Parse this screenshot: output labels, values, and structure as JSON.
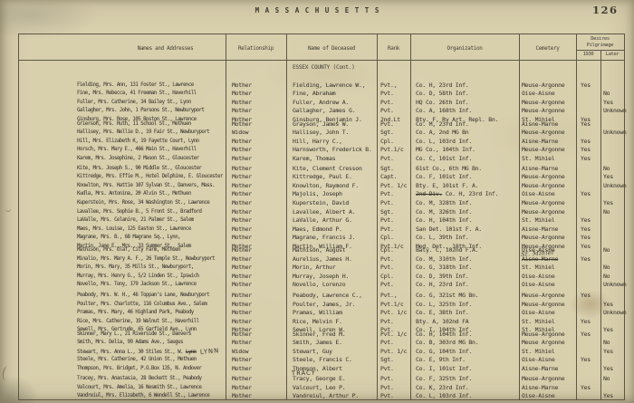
{
  "page": {
    "state_title": "MASSACHUSETTS",
    "page_number": "126",
    "section": "ESSEX COUNTY (Cont.)"
  },
  "colors": {
    "paper": "#d8cfad",
    "ink": "#474139",
    "line": "#5e5746",
    "pencil": "#35312a"
  },
  "table": {
    "headers": {
      "names": "Names and Addresses",
      "relationship": "Relationship",
      "deceased": "Name of Deceased",
      "rank": "Rank",
      "organization": "Organization",
      "cemetery": "Cemetery",
      "pilgrimage_line1": "Desires",
      "pilgrimage_line2": "Pilgrimage",
      "col_1930": "1930",
      "col_later": "Later"
    },
    "groups": [
      {
        "rows": [
          {
            "name": "Fielding, Mrs. Ann, 131 Foster St., Lawrence",
            "rel": "Mother",
            "dec": "Fielding, Lawrence W.,",
            "rank": "Pvt.,",
            "org": "Co. H, 23rd Inf.",
            "cem": "Meuse-Argonne",
            "y1930": "Yes",
            "later": ""
          },
          {
            "name": "Fine, Mrs. Rebecca, 41 Freeman St., Haverhill",
            "rel": "Mother",
            "dec": "Fine, Abraham",
            "rank": "Pvt.",
            "org": "Co. D, 58th Inf.",
            "cem": "Oise-Aisne",
            "y1930": "",
            "later": "No"
          },
          {
            "name": "Fuller, Mrs. Catherine, 34 Bailey St., Lynn",
            "rel": "Mother",
            "dec": "Fuller, Andrew A.",
            "rank": "Pvt.",
            "org": "HQ Co. 26th Inf.",
            "cem": "Meuse-Argonne",
            "y1930": "",
            "later": "Yes"
          },
          {
            "name": "Gallagher, Mrs. John, 1 Parsons St., Newburyport",
            "rel": "Mother",
            "dec": "Gallagher, James G.",
            "rank": "Pvt.",
            "org": "Co. A, 168th Inf.",
            "cem": "Meuse-Argonne",
            "y1930": "",
            "later": "Unknown"
          },
          {
            "name": "Ginsburg, Mrs. Rose, 105 Boston St., Lawrence",
            "rel": "Mother",
            "dec": "Ginsburg, Benjamin J.",
            "rank": "2nd.Lt",
            "org": "Bty. F, Ry Art. Repl. Bn.",
            "cem": "St. Mihiel",
            "y1930": "Yes",
            "later": ""
          }
        ]
      },
      {
        "rows": [
          {
            "name": "Grierson, Mrs. Ruth, 11 School St., Methuen",
            "rel": "Mother",
            "dec": "Grayson, James W.",
            "rank": "Pvt.",
            "org": "Co. M, 23rd Inf.",
            "cem": "Aisne-Marne",
            "y1930": "Yes",
            "later": ""
          },
          {
            "name": "Hallisey, Mrs. Nellie D., 19 Fair St., Newburyport",
            "rel": "Widow",
            "dec": "Hallisey, John T.",
            "rank": "Sgt.",
            "org": "Co. A, 2nd MG Bn",
            "cem": "Meuse-Argonne",
            "y1930": "",
            "later": "Unknown"
          },
          {
            "name": "Hill, Mrs. Elizabeth K, 19 Fayette Court, Lynn",
            "rel": "Mother",
            "dec": "Hill, Harry C.,",
            "rank": "Cpl.",
            "org": "Co. L, 103rd Inf.",
            "cem": "Aisne-Marne",
            "y1930": "Yes",
            "later": ""
          },
          {
            "name": "Horsch, Mrs. Mary E., 466 Main St., Haverhill",
            "rel": "Mother",
            "dec": "Harnsworth, Frederick B.",
            "rank": "Pvt.1/c",
            "org": "MG Co., 104th Inf.",
            "cem": "Meuse-Argonne",
            "y1930": "Yes",
            "later": ""
          },
          {
            "name": "Karem, Mrs. Josephine, 2 Mason St., Gloucester",
            "rel": "Mother",
            "dec": "Karem, Thomas",
            "rank": "Pvt.",
            "org": "Co. C, 101st Inf.",
            "cem": "St. Mihiel",
            "y1930": "Yes",
            "later": ""
          }
        ]
      },
      {
        "rows": [
          {
            "name": "Kite, Mrs. Joseph S., 90 Middle St., Gloucester",
            "rel": "Mother",
            "dec": "Kite, Clement Cresson",
            "rank": "Sgt.",
            "org": "61st Co., 6th MG Bn.",
            "cem": "Aisne-Marne",
            "y1930": "",
            "later": "No"
          },
          {
            "name": "Kittredge, Mrs. Effie M., Hotel Delphine, E. Gloucester",
            "rel": "Mother",
            "dec": "Kittredge, Paul E.",
            "rank": "Capt.",
            "org": "Co. F, 101st Inf.",
            "cem": "Meuse-Argonne",
            "y1930": "",
            "later": "Yes"
          },
          {
            "name": "Knowlton, Mrs. Hattie 107 Sylvan St., Danvers, Mass.",
            "rel": "Mother",
            "dec": "Knowlton, Raymond F.",
            "rank": "Pvt. 1/c",
            "org": "Bty. E, 101st F. A.",
            "cem": "Meuse-Argonne",
            "y1930": "",
            "later": "Unknown"
          },
          {
            "name": "Kudla, Mrs. Antonina, 20 Alvin St., Methuen",
            "rel": "Mother",
            "dec": "Majolis, Joseph",
            "rank": "Pvt.",
            "org_struck": "2nd Div.",
            "org": "Co. H, 23rd Inf.",
            "cem": "Oise-Aisne",
            "y1930": "Yes",
            "later": ""
          },
          {
            "name": "Kuperstein, Mrs. Rose, 34 Washington St., Lawrence",
            "rel": "Mother",
            "dec": "Kuperstein, David",
            "rank": "Pvt.",
            "org": "Co. M, 328th Inf.",
            "cem": "Meuse-Argonne",
            "y1930": "",
            "later": "Yes"
          }
        ]
      },
      {
        "rows": [
          {
            "name": "Lavallee, Mrs. Sophie B., 5 Front St., Bradford",
            "rel": "Mother",
            "dec": "Lavallee, Albert A.",
            "rank": "Sgt.",
            "org": "Co. M, 326th Inf.",
            "cem": "Meuse-Argonne",
            "y1930": "",
            "later": "No"
          },
          {
            "name": "LaValle, Mrs. Celanire, 21 Palmer St., Salem",
            "rel": "Mother",
            "dec": "LaValle, Arthur G.",
            "rank": "Pvt.",
            "org": "Co. H, 104th Inf.",
            "cem": "St. Mihiel",
            "y1930": "Yes",
            "later": ""
          },
          {
            "name": "Maes, Mrs. Louise, 125 Easton St., Lawrence",
            "rel": "Mother",
            "dec": "Maes, Edmond P.",
            "rank": "Pvt.",
            "org": "San Det. 101st F. A.",
            "cem": "Aisne-Marne",
            "y1930": "Yes",
            "later": ""
          },
          {
            "name": "Magrane, Mrs. B., 68 Magrane Sq., Lynn,",
            "rel": "Mother",
            "dec": "Magrane, Francis J.",
            "rank": "Cpl.",
            "org": "Co. L, 39th Inf.",
            "cem": "Meuse-Argonne",
            "y1930": "Yes",
            "later": ""
          },
          {
            "name": "Martin, Jane E., Mrs., 33 Summer St., Salem",
            "rel": "Mother",
            "dec": "Martin, William F.",
            "rank": "Pvt.1/c",
            "org": "Med. Det., 18th Inf.",
            "cem": "Meuse-Argonne",
            "y1930": "Yes",
            "later": ""
          }
        ]
      },
      {
        "rows": [
          {
            "name": "Mathison, Mrs. Olaf, City Farm, Methuen",
            "rel": "Mother",
            "dec": "Mathison, August",
            "rank": "Cpl.",
            "org": "Baty. C, 102nd F.A.",
            "cem": "Oise-Aisne",
            "y1930": "",
            "later": "No"
          },
          {
            "name": "Minalio, Mrs. Mary A. F., 26 Temple St., Newburyport",
            "rel": "Mother",
            "dec": "Aurelius, James H.",
            "rank": "Pvt.",
            "org": "Co. M, 310th Inf.",
            "cem": "Aisne-Marne",
            "cem_struck": true,
            "cem_hand": "St. Mihiel",
            "y1930": "Yes",
            "later": ""
          },
          {
            "name": "Morin, Mrs. Mary, 35 Mills St., Newburyport,",
            "rel": "Mother",
            "dec": "Morin, Arthur",
            "rank": "Pvt.",
            "org": "Co. G, 318th Inf.",
            "cem": "St. Mihiel",
            "y1930": "",
            "later": "No"
          },
          {
            "name": "Murray, Mrs. Henry G., 5/2 Linden St., Ipswich",
            "rel": "Mother",
            "dec": "Murray, Joseph H.",
            "rank": "Cpl.",
            "org": "Co. D, 39th Inf.",
            "cem": "Oise-Aisne",
            "y1930": "",
            "later": "No"
          },
          {
            "name": "Novello, Mrs. Tony, 179 Jackson St., Lawrence",
            "rel": "Mother",
            "dec": "Novello, Lorenzo",
            "rank": "Pvt.",
            "org": "Co. H, 23rd Inf.",
            "cem": "Oise-Aisne",
            "y1930": "",
            "later": "Unknown"
          }
        ]
      },
      {
        "rows": [
          {
            "name": "Peabody, Mrs. W. H., 46 Toppan's Lane, Newburyport",
            "rel": "Mother",
            "dec": "Peabody, Lawrence C.,",
            "rank": "Pvt.,",
            "org": "Co. G, 321st MG Bn.",
            "cem": "Meuse-Argonne",
            "y1930": "Yes",
            "later": ""
          },
          {
            "name": "Poulter, Mrs. Charlotte, 116 Columbus Ave., Salem",
            "rel": "Mother",
            "dec": "Poulter, James, Jr.",
            "rank": "Pvt.1/c",
            "org": "Co. L, 325th Inf.",
            "cem": "Meuse-Argonne",
            "y1930": "",
            "later": "Yes"
          },
          {
            "name": "Pramas, Mrs. Mary, 46 Highland Park, Peabody",
            "rel": "Mother",
            "dec": "Pramas, William",
            "rank": "Pvt. 1/c",
            "org": "Co. E, 38th Inf.",
            "cem": "Oise-Aisne",
            "y1930": "",
            "later": "Unknown"
          },
          {
            "name": "Rice, Mrs. Catherine, 19 Walnut St., Haverhill",
            "rel": "Mother",
            "dec": "Rice, Melvin F.",
            "rank": "Pvt.",
            "org": "Bty. A, 102nd FA",
            "cem": "St. Mihiel",
            "y1930": "Yes",
            "later": ""
          },
          {
            "name": "Sewell, Mrs. Gertrude, 65 Garfield Ave., Lynn",
            "rel": "Mother",
            "dec": "Sewell, Loren W.",
            "rank": "Pvt.",
            "org": "Co. I, 104th Inf.",
            "cem": "St. Mihiel",
            "y1930": "",
            "later": "Yes"
          }
        ]
      },
      {
        "rows": [
          {
            "name": "Skinner, Mary L., 21 Riverside St., Danvers",
            "rel": "Mother",
            "dec": "Skinner, Fred M.",
            "rank": "Pvt. 1/c",
            "org": "Co. H, 104th Inf.",
            "cem": "Meuse-Argonne",
            "y1930": "Yes",
            "later": ""
          },
          {
            "name": "Smith, Mrs. Delia, 99 Adams Ave., Saugus",
            "rel": "Mother",
            "dec": "Smith, James E.",
            "rank": "Pvt.",
            "org": "Co. B, 303rd MG Bn.",
            "cem": "Meuse Argonne",
            "y1930": "",
            "later": "No"
          },
          {
            "name": "Stewart, Mrs. Anna L., 30 Stiles St., W.",
            "name_struck": "Lynn",
            "name_hand": "LYNN",
            "rel": "Widow",
            "dec": "Stewart, Guy",
            "rank": "Pvt. 1/c",
            "org": "Co. G, 104th Inf.",
            "cem": "St. Mihiel",
            "y1930": "",
            "later": "Yes"
          },
          {
            "name": "Steele, Mrs. Catherine, 42 Union St., Methuen",
            "rel": "Mother",
            "dec": "Steele, Francis C.",
            "rank": "Sgt.",
            "org": "Co. E, 9th Inf.",
            "cem": "Oise-Aisne",
            "y1930": "Yes",
            "later": ""
          },
          {
            "name": "Thompson, Mrs. Bridget, P.O.Box 135, N. Andover",
            "rel": "Mother",
            "dec": "Thomson, Albert",
            "rank": "Pvt.",
            "org": "Co. I, 101st Inf.",
            "cem": "Aisne-Marne",
            "y1930": "",
            "later": "Yes"
          }
        ]
      },
      {
        "rows": [
          {
            "name": "Tracey, Mrs. Anastasia, 28 Beckett St., Peabody",
            "rel": "Mother",
            "dec": "Tracy, George E.",
            "dec_hand": "TRACY",
            "rank": "Pvt.",
            "org": "Co. F, 325th Inf.",
            "cem": "Meuse-Argonne",
            "y1930": "",
            "later": "No"
          },
          {
            "name": "Valcourt, Mrs. Amelia, 16 Nesmith St., Lawrence",
            "rel": "Mother",
            "dec": "Valcourt, Leo P.",
            "rank": "Pvt.",
            "org": "Co. K, 23rd Inf.",
            "cem": "Aisne-Marne",
            "y1930": "Yes",
            "later": ""
          },
          {
            "name": "Vandreiul, Mrs. Elizabeth, 6 Wendell St., Lawrence",
            "rel": "Mother",
            "dec": "Vandreiul, Arthur P.",
            "rank": "Pvt.",
            "org": "Co. L, 103rd Inf.",
            "cem": "Oise-Aisne",
            "y1930": "",
            "later": "Yes"
          }
        ]
      }
    ]
  }
}
